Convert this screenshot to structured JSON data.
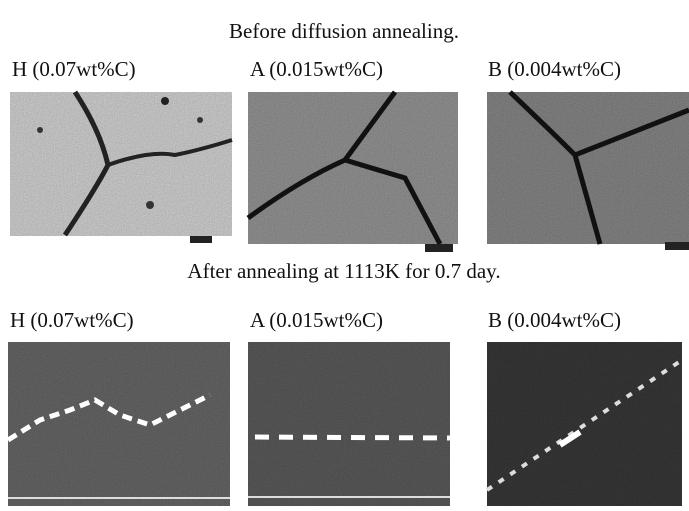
{
  "sections": [
    {
      "heading": "Before diffusion annealing.",
      "panels": [
        {
          "label": "H (0.07wt%C)"
        },
        {
          "label": "A (0.015wt%C)"
        },
        {
          "label": "B (0.004wt%C)"
        }
      ]
    },
    {
      "heading": "After annealing at 1113K for 0.7 day.",
      "panels": [
        {
          "label": "H (0.07wt%C)"
        },
        {
          "label": "A (0.015wt%C)"
        },
        {
          "label": "B (0.004wt%C)"
        }
      ]
    }
  ]
}
